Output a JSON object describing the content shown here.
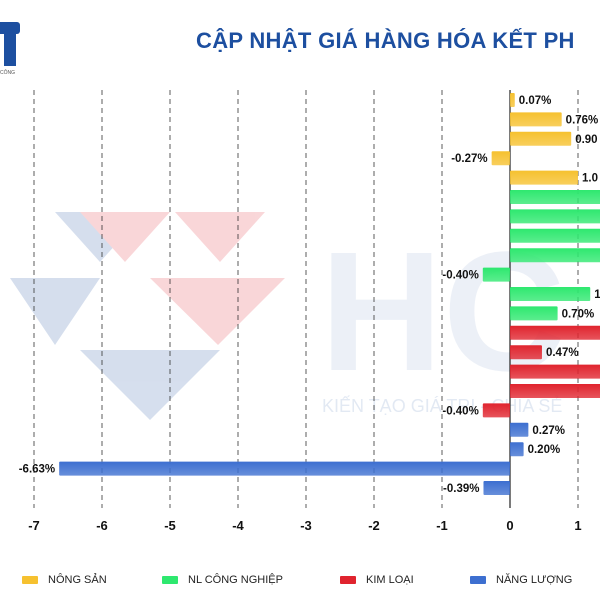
{
  "logo": {
    "letter": "T",
    "tagline": "CÔNG"
  },
  "title": "CẬP NHẬT GIÁ HÀNG HÓA KẾT PH",
  "watermark": {
    "letters": "HC",
    "tagline": "KIẾN TẠO GIÁ TRỊ - CHIA SẺ"
  },
  "chart_data": {
    "type": "bar",
    "orientation": "horizontal",
    "xlim": [
      -7.6,
      1.35
    ],
    "xticks": [
      -7,
      -6,
      -5,
      -4,
      -3,
      -2,
      -1,
      0,
      1
    ],
    "grid": true,
    "series": [
      {
        "name": "NÔNG SẢN",
        "color": "#f6c12f"
      },
      {
        "name": "NL CÔNG NGHIỆP",
        "color": "#2ee86f"
      },
      {
        "name": "KIM LOẠI",
        "color": "#e0242e"
      },
      {
        "name": "NĂNG LƯỢNG",
        "color": "#3d6fd0"
      }
    ],
    "bars": [
      {
        "series": 0,
        "value": 0.07,
        "label": "0.07%"
      },
      {
        "series": 0,
        "value": 0.76,
        "label": "0.76%"
      },
      {
        "series": 0,
        "value": 0.9,
        "label": "0.90"
      },
      {
        "series": 0,
        "value": -0.27,
        "label": "-0.27%"
      },
      {
        "series": 0,
        "value": 1.0,
        "label": "1.0"
      },
      {
        "series": 1,
        "value": 1.4,
        "label": ""
      },
      {
        "series": 1,
        "value": 1.4,
        "label": ""
      },
      {
        "series": 1,
        "value": 1.4,
        "label": ""
      },
      {
        "series": 1,
        "value": 1.4,
        "label": ""
      },
      {
        "series": 1,
        "value": -0.4,
        "label": "-0.40%"
      },
      {
        "series": 1,
        "value": 1.18,
        "label": "1."
      },
      {
        "series": 1,
        "value": 0.7,
        "label": "0.70%"
      },
      {
        "series": 2,
        "value": 1.4,
        "label": ""
      },
      {
        "series": 2,
        "value": 0.47,
        "label": "0.47%"
      },
      {
        "series": 2,
        "value": 1.4,
        "label": ""
      },
      {
        "series": 2,
        "value": 1.4,
        "label": ""
      },
      {
        "series": 2,
        "value": -0.4,
        "label": "-0.40%"
      },
      {
        "series": 3,
        "value": 0.27,
        "label": "0.27%"
      },
      {
        "series": 3,
        "value": 0.2,
        "label": "0.20%"
      },
      {
        "series": 3,
        "value": -6.63,
        "label": "-6.63%"
      },
      {
        "series": 3,
        "value": -0.39,
        "label": "-0.39%"
      }
    ]
  }
}
